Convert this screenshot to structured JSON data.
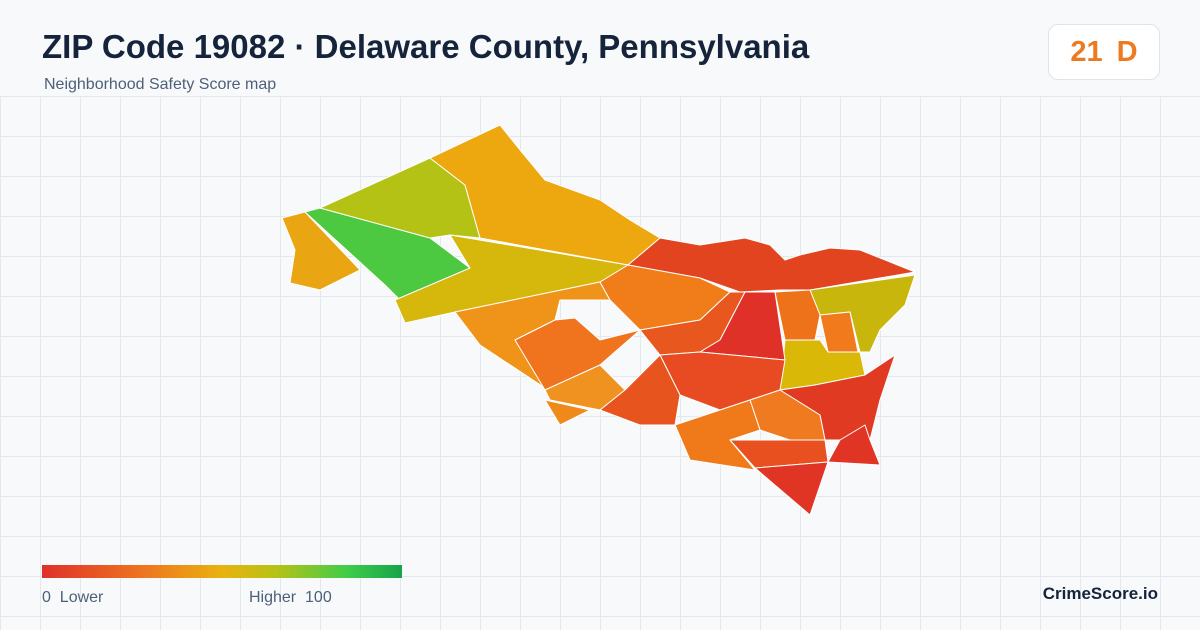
{
  "header": {
    "title": "ZIP Code 19082 · Delaware County, Pennsylvania",
    "subtitle": "Neighborhood Safety Score map"
  },
  "score": {
    "value": 21,
    "grade": "D"
  },
  "legend": {
    "min": 0,
    "min_label": "Lower",
    "max_label": "Higher",
    "max": 100
  },
  "brand": "CrimeScore.io"
}
